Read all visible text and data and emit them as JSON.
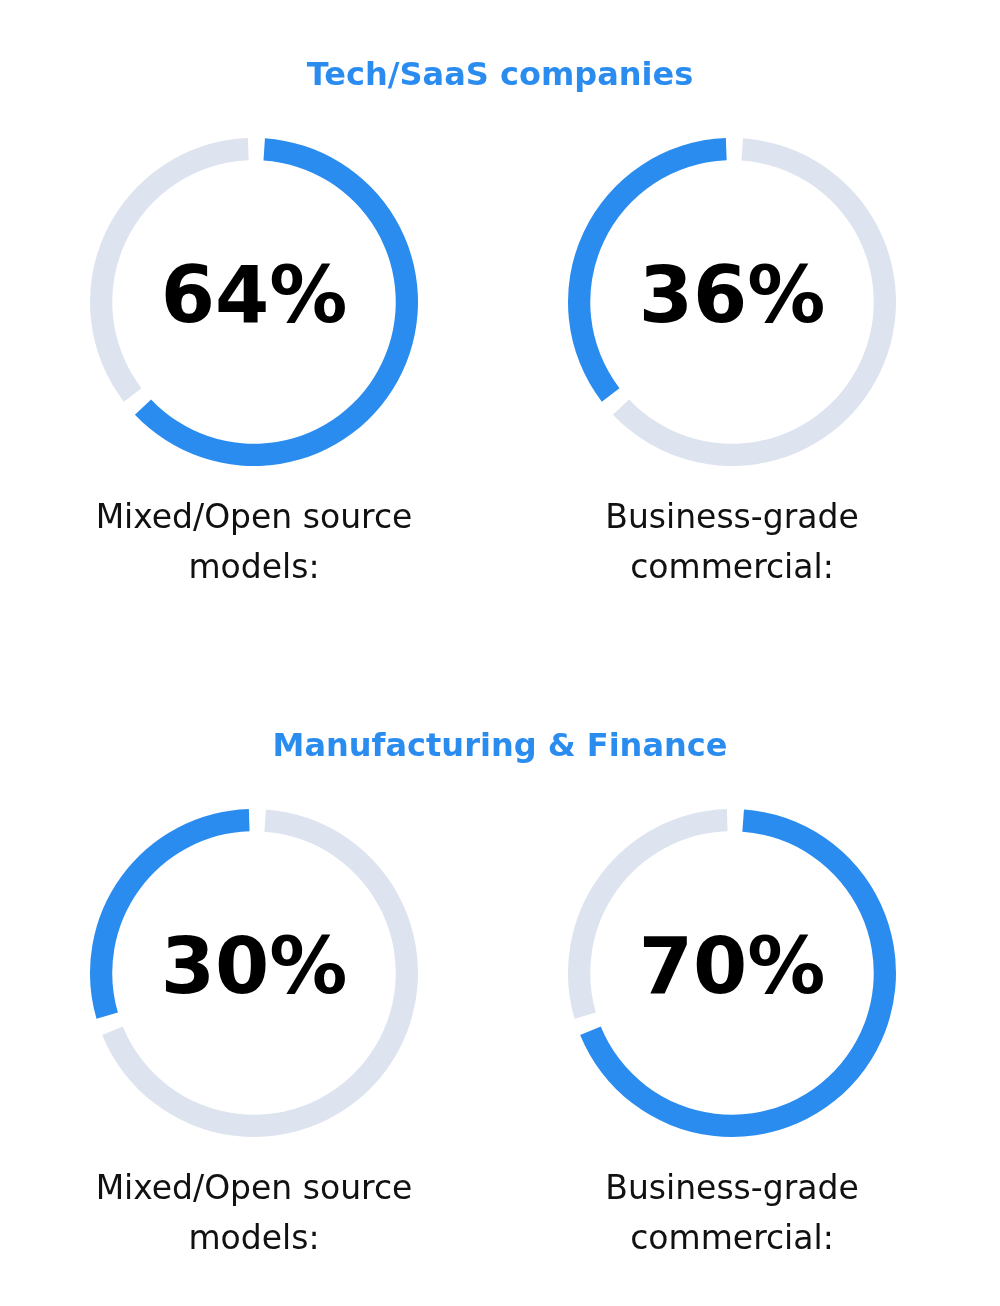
{
  "chart_data": [
    {
      "type": "donut",
      "title": "Tech/SaaS companies",
      "categories": [
        null,
        null
      ],
      "values": [
        64,
        36
      ],
      "colors": [
        "#2b8cf0",
        "#dde4ef"
      ],
      "value_labels": [
        "64%",
        null
      ],
      "annotations": [
        "Mixed/Open source models:"
      ]
    },
    {
      "type": "donut",
      "categories": [
        null,
        null
      ],
      "values": [
        36,
        64
      ],
      "colors": [
        "#2b8cf0",
        "#dde4ef"
      ],
      "value_labels": [
        "36%",
        null
      ],
      "annotations": [
        "Business-grade commercial:"
      ]
    },
    {
      "type": "donut",
      "title": "Manufacturing & Finance",
      "categories": [
        null,
        null
      ],
      "values": [
        30,
        70
      ],
      "colors": [
        "#2b8cf0",
        "#dde4ef"
      ],
      "value_labels": [
        "30%",
        null
      ],
      "annotations": [
        "Mixed/Open source models:"
      ]
    },
    {
      "type": "donut",
      "categories": [
        null,
        null
      ],
      "values": [
        70,
        30
      ],
      "colors": [
        "#2b8cf0",
        "#dde4ef"
      ],
      "value_labels": [
        "70%",
        null
      ],
      "annotations": [
        "Business-grade commercial:"
      ]
    }
  ]
}
